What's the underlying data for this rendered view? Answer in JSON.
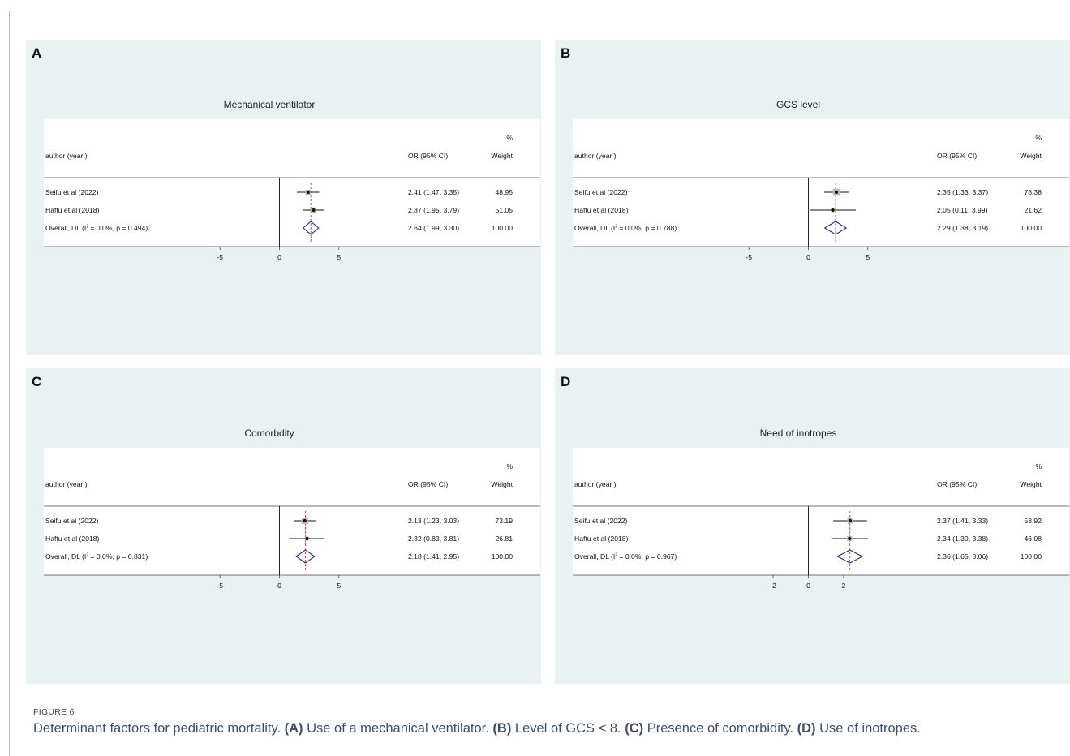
{
  "figure_label": "FIGURE 6",
  "caption": {
    "lead": "Determinant factors for pediatric mortality. ",
    "parts": [
      {
        "tag": "(A)",
        "text": " Use of a mechanical ventilator. "
      },
      {
        "tag": "(B)",
        "text": " Level of GCS < 8. "
      },
      {
        "tag": "(C)",
        "text": " Presence of comorbidity. "
      },
      {
        "tag": "(D)",
        "text": " Use of inotropes."
      }
    ]
  },
  "chart_data": [
    {
      "type": "forest",
      "panel": "A",
      "title": "Mechanical ventilator",
      "headers": {
        "study": "author (year )",
        "effect": "OR (95% CI)",
        "weight_pct": "%",
        "weight": "Weight"
      },
      "studies": [
        {
          "label": "Seifu et al (2022)",
          "or": 2.41,
          "lo": 1.47,
          "hi": 3.35,
          "ci_text": "2.41 (1.47, 3.35)",
          "weight": "48.95"
        },
        {
          "label": "Haftu et al (2018)",
          "or": 2.87,
          "lo": 1.95,
          "hi": 3.79,
          "ci_text": "2.87 (1.95, 3.79)",
          "weight": "51.05"
        }
      ],
      "overall": {
        "label_pre": "Overall, DL (I",
        "label_sup": "2",
        "label_post": " = 0.0%, p = 0.494)",
        "or": 2.64,
        "lo": 1.99,
        "hi": 3.3,
        "ci_text": "2.64 (1.99, 3.30)",
        "weight": "100.00"
      },
      "xlim": [
        -10,
        10
      ],
      "ticks": [
        {
          "value": -5,
          "label": "-5"
        },
        {
          "value": 0,
          "label": "0"
        },
        {
          "value": 5,
          "label": "5"
        }
      ]
    },
    {
      "type": "forest",
      "panel": "B",
      "title": "GCS level",
      "headers": {
        "study": "author (year )",
        "effect": "OR (95% CI)",
        "weight_pct": "%",
        "weight": "Weight"
      },
      "studies": [
        {
          "label": "Seifu et al (2022)",
          "or": 2.35,
          "lo": 1.33,
          "hi": 3.37,
          "ci_text": "2.35 (1.33, 3.37)",
          "weight": "78.38"
        },
        {
          "label": "Haftu et al (2018)",
          "or": 2.05,
          "lo": 0.11,
          "hi": 3.99,
          "ci_text": "2.05 (0.11, 3.99)",
          "weight": "21.62"
        }
      ],
      "overall": {
        "label_pre": "Overall, DL (I",
        "label_sup": "2",
        "label_post": " = 0.0%, p = 0.788)",
        "or": 2.29,
        "lo": 1.38,
        "hi": 3.19,
        "ci_text": "2.29 (1.38, 3.19)",
        "weight": "100.00"
      },
      "xlim": [
        -10,
        10
      ],
      "ticks": [
        {
          "value": -5,
          "label": "-5"
        },
        {
          "value": 0,
          "label": "0"
        },
        {
          "value": 5,
          "label": "5"
        }
      ]
    },
    {
      "type": "forest",
      "panel": "C",
      "title": "Comorbdity",
      "headers": {
        "study": "author (year )",
        "effect": "OR (95% CI)",
        "weight_pct": "%",
        "weight": "Weight"
      },
      "studies": [
        {
          "label": "Seifu et al (2022)",
          "or": 2.13,
          "lo": 1.23,
          "hi": 3.03,
          "ci_text": "2.13 (1.23, 3.03)",
          "weight": "73.19"
        },
        {
          "label": "Haftu et al (2018)",
          "or": 2.32,
          "lo": 0.83,
          "hi": 3.81,
          "ci_text": "2.32 (0.83, 3.81)",
          "weight": "26.81"
        }
      ],
      "overall": {
        "label_pre": "Overall, DL (I",
        "label_sup": "2",
        "label_post": " = 0.0%, p = 0.831)",
        "or": 2.18,
        "lo": 1.41,
        "hi": 2.95,
        "ci_text": "2.18 (1.41, 2.95)",
        "weight": "100.00"
      },
      "xlim": [
        -10,
        10
      ],
      "ticks": [
        {
          "value": -5,
          "label": "-5"
        },
        {
          "value": 0,
          "label": "0"
        },
        {
          "value": 5,
          "label": "5"
        }
      ]
    },
    {
      "type": "forest",
      "panel": "D",
      "title": "Need of inotropes",
      "headers": {
        "study": "author (year )",
        "effect": "OR (95% CI)",
        "weight_pct": "%",
        "weight": "Weight"
      },
      "studies": [
        {
          "label": "Seifu et al (2022)",
          "or": 2.37,
          "lo": 1.41,
          "hi": 3.33,
          "ci_text": "2.37 (1.41, 3.33)",
          "weight": "53.92"
        },
        {
          "label": "Haftu et al (2018)",
          "or": 2.34,
          "lo": 1.3,
          "hi": 3.38,
          "ci_text": "2.34 (1.30, 3.38)",
          "weight": "46.08"
        }
      ],
      "overall": {
        "label_pre": "Overall, DL (I",
        "label_sup": "2",
        "label_post": " = 0.0%, p = 0.967)",
        "or": 2.36,
        "lo": 1.65,
        "hi": 3.06,
        "ci_text": "2.36 (1.65, 3.06)",
        "weight": "100.00"
      },
      "xlim": [
        -6.75,
        6.75
      ],
      "ticks": [
        {
          "value": -2,
          "label": "-2"
        },
        {
          "value": 0,
          "label": "0"
        },
        {
          "value": 2,
          "label": "2"
        }
      ]
    }
  ]
}
